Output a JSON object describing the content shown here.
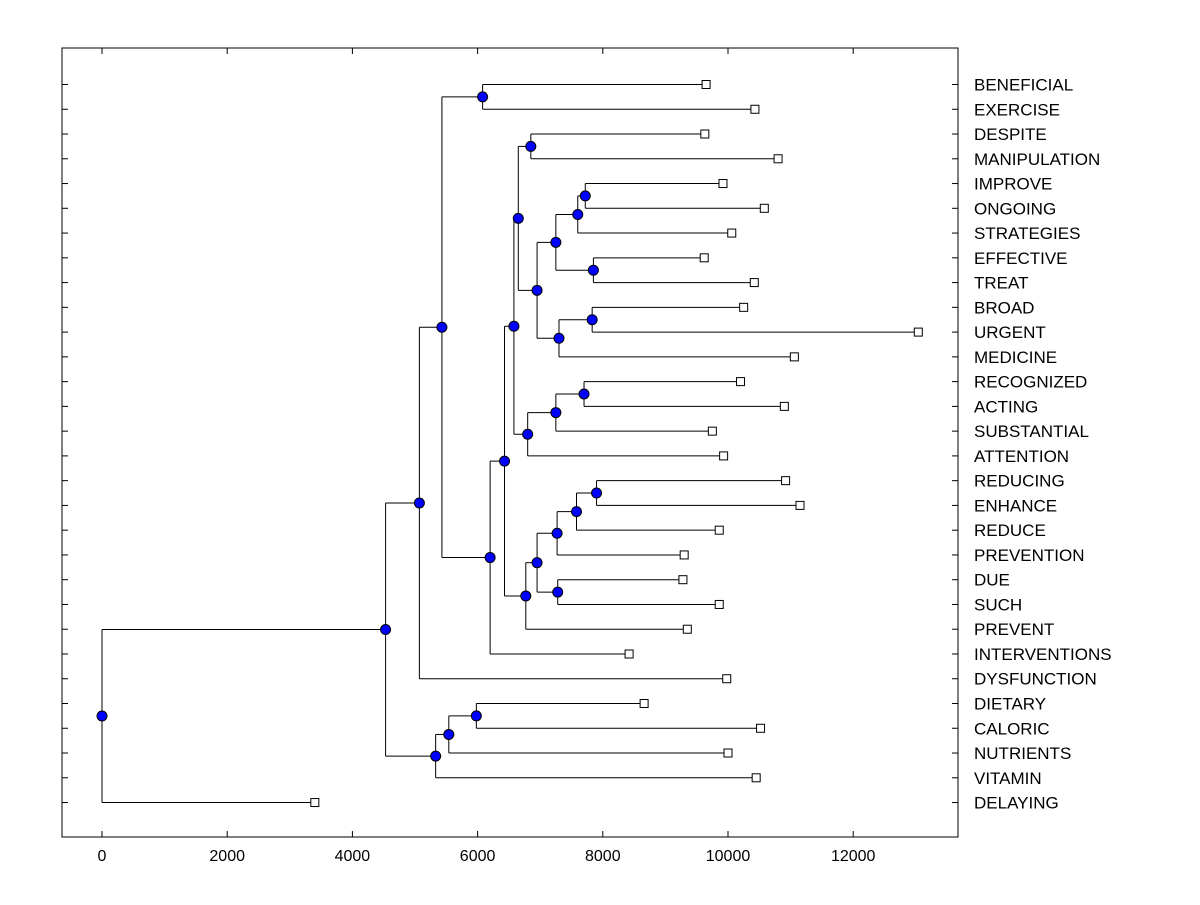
{
  "chart_data": {
    "type": "dendrogram",
    "title": "",
    "xlabel": "",
    "ylabel": "",
    "xlim": [
      -650,
      13700
    ],
    "xticks": [
      0,
      2000,
      4000,
      6000,
      8000,
      10000,
      12000
    ],
    "tick_labels": [
      "0",
      "2000",
      "4000",
      "6000",
      "8000",
      "10000",
      "12000"
    ],
    "grid": false,
    "colors": {
      "node_fill": "#0000ff",
      "line": "#000000",
      "leaf_fill": "#ffffff"
    },
    "leaves": [
      {
        "label": "BENEFICIAL",
        "x": 9650
      },
      {
        "label": "EXERCISE",
        "x": 10430
      },
      {
        "label": "DESPITE",
        "x": 9630
      },
      {
        "label": "MANIPULATION",
        "x": 10800
      },
      {
        "label": "IMPROVE",
        "x": 9920
      },
      {
        "label": "ONGOING",
        "x": 10580
      },
      {
        "label": "STRATEGIES",
        "x": 10060
      },
      {
        "label": "EFFECTIVE",
        "x": 9620
      },
      {
        "label": "TREAT",
        "x": 10420
      },
      {
        "label": "BROAD",
        "x": 10250
      },
      {
        "label": "URGENT",
        "x": 13040
      },
      {
        "label": "MEDICINE",
        "x": 11060
      },
      {
        "label": "RECOGNIZED",
        "x": 10200
      },
      {
        "label": "ACTING",
        "x": 10900
      },
      {
        "label": "SUBSTANTIAL",
        "x": 9750
      },
      {
        "label": "ATTENTION",
        "x": 9930
      },
      {
        "label": "REDUCING",
        "x": 10920
      },
      {
        "label": "ENHANCE",
        "x": 11150
      },
      {
        "label": "REDUCE",
        "x": 9860
      },
      {
        "label": "PREVENTION",
        "x": 9300
      },
      {
        "label": "DUE",
        "x": 9280
      },
      {
        "label": "SUCH",
        "x": 9860
      },
      {
        "label": "PREVENT",
        "x": 9350
      },
      {
        "label": "INTERVENTIONS",
        "x": 8420
      },
      {
        "label": "DYSFUNCTION",
        "x": 9980
      },
      {
        "label": "DIETARY",
        "x": 8660
      },
      {
        "label": "CALORIC",
        "x": 10520
      },
      {
        "label": "NUTRIENTS",
        "x": 10000
      },
      {
        "label": "VITAMIN",
        "x": 10450
      },
      {
        "label": "DELAYING",
        "x": 3400
      }
    ],
    "merges": [
      {
        "x": 6080,
        "children": [
          "L0",
          "L1"
        ]
      },
      {
        "x": 6850,
        "children": [
          "L2",
          "L3"
        ]
      },
      {
        "x": 7720,
        "children": [
          "L4",
          "L5"
        ]
      },
      {
        "x": 7600,
        "children": [
          "M2",
          "L6"
        ]
      },
      {
        "x": 7850,
        "children": [
          "L7",
          "L8"
        ]
      },
      {
        "x": 7250,
        "children": [
          "M3",
          "M4"
        ]
      },
      {
        "x": 7830,
        "children": [
          "L9",
          "L10"
        ]
      },
      {
        "x": 7300,
        "children": [
          "M6",
          "L11"
        ]
      },
      {
        "x": 6950,
        "children": [
          "M5",
          "M7"
        ]
      },
      {
        "x": 6650,
        "children": [
          "M1",
          "M8"
        ]
      },
      {
        "x": 7700,
        "children": [
          "L12",
          "L13"
        ]
      },
      {
        "x": 7250,
        "children": [
          "M10",
          "L14"
        ]
      },
      {
        "x": 6800,
        "children": [
          "M11",
          "L15"
        ]
      },
      {
        "x": 6580,
        "children": [
          "M9",
          "M12"
        ]
      },
      {
        "x": 7900,
        "children": [
          "L16",
          "L17"
        ]
      },
      {
        "x": 7580,
        "children": [
          "M14",
          "L18"
        ]
      },
      {
        "x": 7270,
        "children": [
          "M15",
          "L19"
        ]
      },
      {
        "x": 7280,
        "children": [
          "L20",
          "L21"
        ]
      },
      {
        "x": 6950,
        "children": [
          "M16",
          "M17"
        ]
      },
      {
        "x": 6770,
        "children": [
          "M18",
          "L22"
        ]
      },
      {
        "x": 6430,
        "children": [
          "M13",
          "M19"
        ]
      },
      {
        "x": 6200,
        "children": [
          "M20",
          "L23"
        ]
      },
      {
        "x": 5430,
        "children": [
          "M0",
          "M21"
        ]
      },
      {
        "x": 5070,
        "children": [
          "M22",
          "L24"
        ]
      },
      {
        "x": 5980,
        "children": [
          "L25",
          "L26"
        ]
      },
      {
        "x": 5540,
        "children": [
          "M24",
          "L27"
        ]
      },
      {
        "x": 5330,
        "children": [
          "M25",
          "L28"
        ]
      },
      {
        "x": 4530,
        "children": [
          "M23",
          "M26"
        ]
      },
      {
        "x": 0,
        "children": [
          "M27",
          "L29"
        ]
      }
    ]
  }
}
